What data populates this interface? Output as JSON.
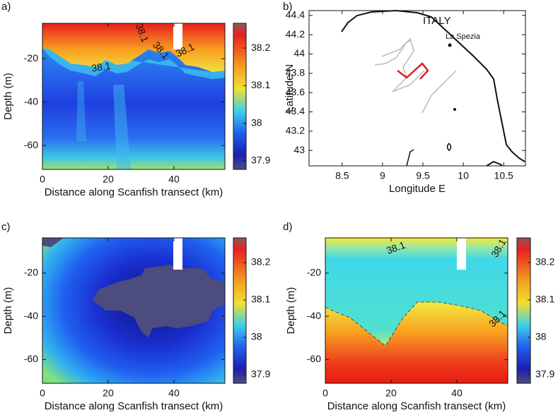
{
  "chart_data": [
    {
      "type": "heatmap",
      "panel": "a)",
      "xlabel": "Distance along Scanfish transect (km)",
      "ylabel": "Depth (m)",
      "xlim": [
        0,
        55.5
      ],
      "ylim": [
        -71,
        -3.7
      ],
      "xticks": [
        0,
        20,
        40
      ],
      "yticks": [
        -60,
        -40,
        -20
      ],
      "colorbar": {
        "clim": [
          37.877,
          38.266
        ],
        "ticks": [
          37.9,
          38,
          38.1,
          38.2
        ]
      },
      "contour_labels": [
        "38.1",
        "38.1",
        "38.1",
        "38.1"
      ]
    },
    {
      "type": "map",
      "panel": "b)",
      "xlabel": "Longitude E",
      "ylabel": "Latitude N",
      "xlim": [
        8.09,
        10.77
      ],
      "ylim": [
        42.84,
        44.45
      ],
      "xticks": [
        8.5,
        9,
        9.5,
        10,
        10.5
      ],
      "yticks": [
        43,
        43.2,
        43.4,
        43.6,
        43.8,
        44,
        44.2,
        44.4
      ],
      "annotations": [
        "ITALY",
        "La Spezia"
      ]
    },
    {
      "type": "heatmap",
      "panel": "c)",
      "xlabel": "Distance along Scanfish transect (km)",
      "ylabel": "Depth (m)",
      "xlim": [
        0,
        55.5
      ],
      "ylim": [
        -71,
        -3.7
      ],
      "xticks": [
        0,
        20,
        40
      ],
      "yticks": [
        -60,
        -40,
        -20
      ],
      "colorbar": {
        "clim": [
          37.877,
          38.266
        ],
        "ticks": [
          37.9,
          38,
          38.1,
          38.2
        ]
      },
      "contour_labels": []
    },
    {
      "type": "heatmap",
      "panel": "d)",
      "xlabel": "Distance along Scanfish transect (km)",
      "ylabel": "Depth (m)",
      "xlim": [
        0,
        55.5
      ],
      "ylim": [
        -71,
        -3.7
      ],
      "xticks": [
        0,
        20,
        40
      ],
      "yticks": [
        -60,
        -40,
        -20
      ],
      "colorbar": {
        "clim": [
          37.877,
          38.266
        ],
        "ticks": [
          37.9,
          38,
          38.1,
          38.2
        ]
      },
      "contour_labels": [
        "38.1",
        "38.1",
        "38.1"
      ]
    }
  ]
}
